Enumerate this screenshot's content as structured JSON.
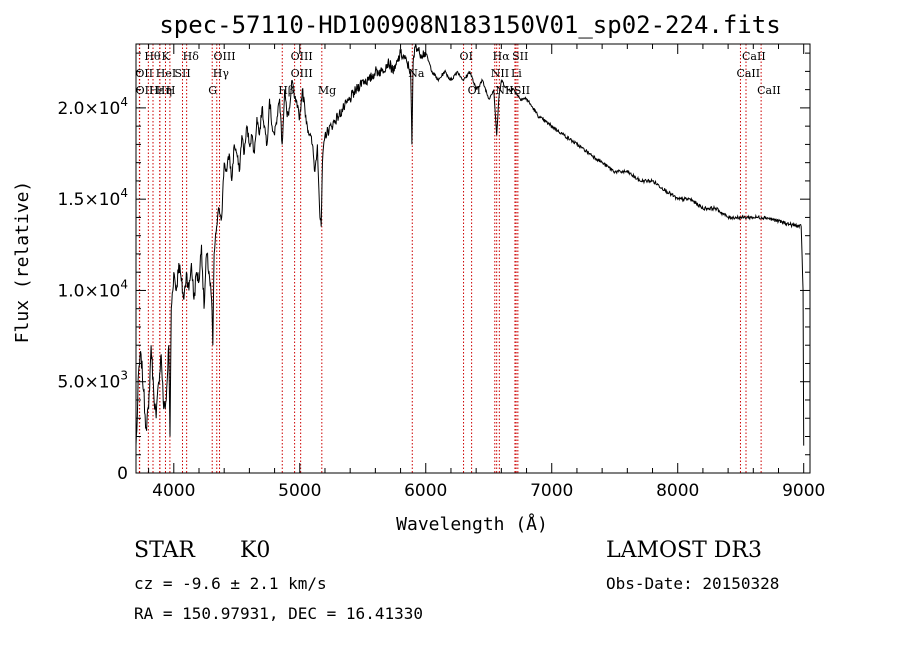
{
  "chart_data": {
    "type": "line",
    "title": "spec-57110-HD100908N183150V01_sp02-224.fits",
    "xlabel": "Wavelength (Å)",
    "ylabel": "Flux (relative)",
    "xlim": [
      3700,
      9050
    ],
    "ylim": [
      0,
      23500
    ],
    "x_ticks": [
      4000,
      5000,
      6000,
      7000,
      8000,
      9000
    ],
    "x_tick_labels": [
      "4000",
      "5000",
      "6000",
      "7000",
      "8000",
      "9000"
    ],
    "y_ticks": [
      0,
      5000,
      10000,
      15000,
      20000
    ],
    "y_tick_labels": [
      {
        "mant": "0",
        "exp": ""
      },
      {
        "mant": "5.0×10",
        "exp": "3"
      },
      {
        "mant": "1.0×10",
        "exp": "4"
      },
      {
        "mant": "1.5×10",
        "exp": "4"
      },
      {
        "mant": "2.0×10",
        "exp": "4"
      }
    ],
    "series": [
      {
        "name": "spectrum",
        "x": [
          3700,
          3710,
          3720,
          3740,
          3760,
          3780,
          3800,
          3820,
          3840,
          3860,
          3880,
          3900,
          3920,
          3940,
          3960,
          3970,
          3980,
          4000,
          4020,
          4040,
          4060,
          4080,
          4100,
          4120,
          4140,
          4160,
          4180,
          4200,
          4220,
          4240,
          4260,
          4280,
          4300,
          4310,
          4320,
          4340,
          4360,
          4380,
          4400,
          4420,
          4440,
          4460,
          4480,
          4500,
          4520,
          4540,
          4560,
          4580,
          4600,
          4620,
          4640,
          4660,
          4680,
          4700,
          4720,
          4740,
          4760,
          4780,
          4800,
          4820,
          4840,
          4860,
          4880,
          4900,
          4920,
          4940,
          4960,
          4980,
          5000,
          5020,
          5040,
          5060,
          5080,
          5100,
          5120,
          5140,
          5160,
          5170,
          5180,
          5200,
          5250,
          5300,
          5350,
          5400,
          5450,
          5500,
          5550,
          5600,
          5650,
          5700,
          5750,
          5800,
          5850,
          5880,
          5890,
          5900,
          5920,
          5950,
          6000,
          6050,
          6100,
          6150,
          6200,
          6250,
          6300,
          6350,
          6400,
          6450,
          6500,
          6540,
          6563,
          6580,
          6600,
          6650,
          6700,
          6750,
          6800,
          6850,
          6900,
          7000,
          7100,
          7200,
          7300,
          7400,
          7500,
          7600,
          7700,
          7800,
          7900,
          8000,
          8100,
          8200,
          8300,
          8400,
          8500,
          8600,
          8700,
          8800,
          8900,
          8980,
          8995,
          9000
        ],
        "values": [
          1500,
          3000,
          5500,
          6500,
          4500,
          2500,
          3500,
          7000,
          4500,
          3000,
          5000,
          6500,
          3500,
          4000,
          7000,
          2000,
          9000,
          11000,
          10000,
          11500,
          10500,
          9500,
          11000,
          10000,
          11500,
          9500,
          11000,
          10500,
          12500,
          9000,
          12000,
          11000,
          9500,
          7000,
          12000,
          13500,
          14500,
          14000,
          17000,
          16500,
          17500,
          16000,
          18000,
          17500,
          16500,
          18500,
          17500,
          19000,
          18000,
          18500,
          17500,
          19500,
          18500,
          20000,
          19000,
          18000,
          20500,
          19000,
          18500,
          19500,
          20500,
          18000,
          21000,
          19500,
          20000,
          21500,
          20500,
          20000,
          19500,
          21000,
          20000,
          19000,
          18500,
          18000,
          16500,
          18000,
          14000,
          13500,
          17000,
          18500,
          19000,
          19500,
          20000,
          20500,
          21000,
          21500,
          21500,
          22000,
          22000,
          22500,
          22000,
          23000,
          22500,
          22000,
          18000,
          22500,
          23500,
          23000,
          23000,
          22000,
          21500,
          22000,
          21500,
          22000,
          21500,
          22000,
          21000,
          21500,
          20500,
          21000,
          18500,
          20500,
          21500,
          21000,
          21000,
          20500,
          20500,
          20000,
          19500,
          19000,
          18500,
          18000,
          17500,
          17000,
          16500,
          16500,
          16000,
          16000,
          15500,
          15000,
          15000,
          14500,
          14500,
          14000,
          14000,
          14000,
          14000,
          13800,
          13600,
          13500,
          10000,
          1500
        ]
      }
    ],
    "lines": [
      {
        "name": "Hθ",
        "wl": 3798,
        "row": 0,
        "dx": 0
      },
      {
        "name": "OII",
        "wl": 3727,
        "row": 1,
        "dx": 0
      },
      {
        "name": "OII",
        "wl": 3729,
        "row": 2,
        "dx": 0
      },
      {
        "name": "Hε",
        "wl": 3835,
        "row": 2,
        "dx": 0
      },
      {
        "name": "Hη",
        "wl": 3889,
        "row": 2,
        "dx": 0
      },
      {
        "name": "K",
        "wl": 3934,
        "row": 0,
        "dx": 0
      },
      {
        "name": "HeI",
        "wl": 3889,
        "row": 1,
        "dx": 0
      },
      {
        "name": "H",
        "wl": 3969,
        "row": 2,
        "dx": 0
      },
      {
        "name": "SII",
        "wl": 4069,
        "row": 1,
        "dx": -4
      },
      {
        "name": "Hδ",
        "wl": 4102,
        "row": 0,
        "dx": 0
      },
      {
        "name": "OIII",
        "wl": 4363,
        "row": 0,
        "dx": -2
      },
      {
        "name": "Hγ",
        "wl": 4341,
        "row": 1,
        "dx": 0
      },
      {
        "name": "G",
        "wl": 4305,
        "row": 2,
        "dx": 0
      },
      {
        "name": "Hβ",
        "wl": 4861,
        "row": 2,
        "dx": 0
      },
      {
        "name": "OIII",
        "wl": 4959,
        "row": 0,
        "dx": 0
      },
      {
        "name": "OIII",
        "wl": 5007,
        "row": 1,
        "dx": -6
      },
      {
        "name": "Mg",
        "wl": 5175,
        "row": 2,
        "dx": 0
      },
      {
        "name": "Na",
        "wl": 5893,
        "row": 1,
        "dx": 0
      },
      {
        "name": "OI",
        "wl": 6300,
        "row": 0,
        "dx": 0
      },
      {
        "name": "OI",
        "wl": 6364,
        "row": 2,
        "dx": 0
      },
      {
        "name": "Hα",
        "wl": 6563,
        "row": 0,
        "dx": 0
      },
      {
        "name": "NII",
        "wl": 6548,
        "row": 1,
        "dx": 0
      },
      {
        "name": "NII",
        "wl": 6584,
        "row": 2,
        "dx": 0
      },
      {
        "name": "SII",
        "wl": 6717,
        "row": 0,
        "dx": 0
      },
      {
        "name": "Li",
        "wl": 6708,
        "row": 1,
        "dx": 0
      },
      {
        "name": "SII",
        "wl": 6731,
        "row": 2,
        "dx": 0
      },
      {
        "name": "CaII",
        "wl": 8542,
        "row": 0,
        "dx": 0
      },
      {
        "name": "CaII",
        "wl": 8498,
        "row": 1,
        "dx": 0
      },
      {
        "name": "CaII",
        "wl": 8662,
        "row": 2,
        "dx": 0
      }
    ]
  },
  "info": {
    "star": "STAR",
    "subclass": "K0",
    "survey": "LAMOST DR3",
    "cz": "cz = -9.6 ± 2.1 km/s",
    "obs_date": "Obs-Date: 20150328",
    "radec": "RA = 150.97931, DEC =  16.41330"
  },
  "colors": {
    "line_marker": "#cc0000",
    "spectrum": "#000000"
  }
}
